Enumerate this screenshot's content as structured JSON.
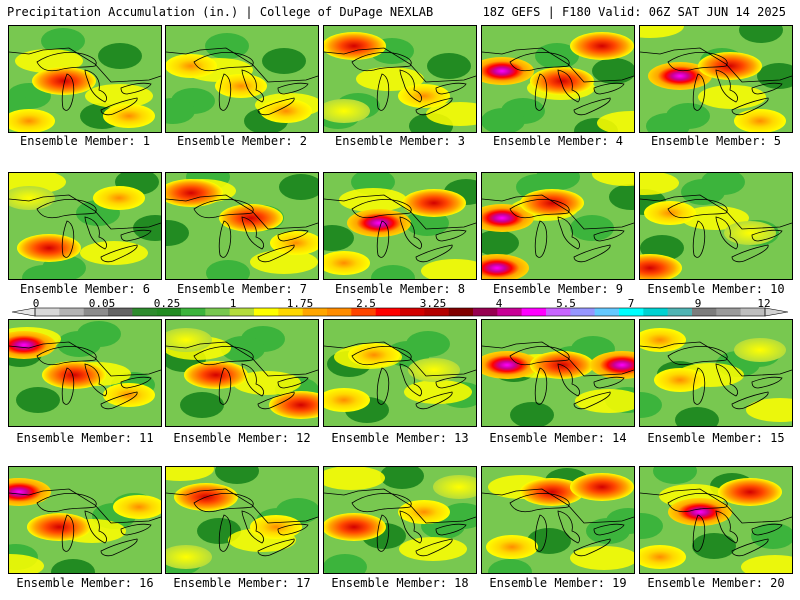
{
  "header": {
    "left": "Precipitation Accumulation (in.) | College of DuPage NEXLAB",
    "right": "18Z GEFS | F180 Valid: 06Z SAT JUN 14 2025"
  },
  "panels": [
    {
      "label": "Ensemble Member: 1"
    },
    {
      "label": "Ensemble Member: 2"
    },
    {
      "label": "Ensemble Member: 3"
    },
    {
      "label": "Ensemble Member: 4"
    },
    {
      "label": "Ensemble Member: 5"
    },
    {
      "label": "Ensemble Member: 6"
    },
    {
      "label": "Ensemble Member: 7"
    },
    {
      "label": "Ensemble Member: 8"
    },
    {
      "label": "Ensemble Member: 9"
    },
    {
      "label": "Ensemble Member: 10"
    },
    {
      "label": "Ensemble Member: 11"
    },
    {
      "label": "Ensemble Member: 12"
    },
    {
      "label": "Ensemble Member: 13"
    },
    {
      "label": "Ensemble Member: 14"
    },
    {
      "label": "Ensemble Member: 15"
    },
    {
      "label": "Ensemble Member: 16"
    },
    {
      "label": "Ensemble Member: 17"
    },
    {
      "label": "Ensemble Member: 18"
    },
    {
      "label": "Ensemble Member: 19"
    },
    {
      "label": "Ensemble Member: 20"
    }
  ],
  "colorbar": {
    "ticks": [
      "0",
      "0.05",
      "0.25",
      "1",
      "1.75",
      "2.5",
      "3.25",
      "4",
      "5.5",
      "7",
      "9",
      "12"
    ],
    "colors": [
      "#d8d8d8",
      "#b4b4b4",
      "#8c8c8c",
      "#646464",
      "#2e8b2e",
      "#228b22",
      "#3cb43c",
      "#78c850",
      "#b4dc3c",
      "#ffff00",
      "#ffd700",
      "#ffa500",
      "#ff8c00",
      "#ff4500",
      "#ff0000",
      "#d20000",
      "#b40000",
      "#800000",
      "#960050",
      "#c80096",
      "#ff00ff",
      "#c864ff",
      "#9696ff",
      "#64c8ff",
      "#00ffff",
      "#00d2d2",
      "#50b4b4",
      "#7d7d7d",
      "#9b9b9b",
      "#bebebe"
    ]
  }
}
